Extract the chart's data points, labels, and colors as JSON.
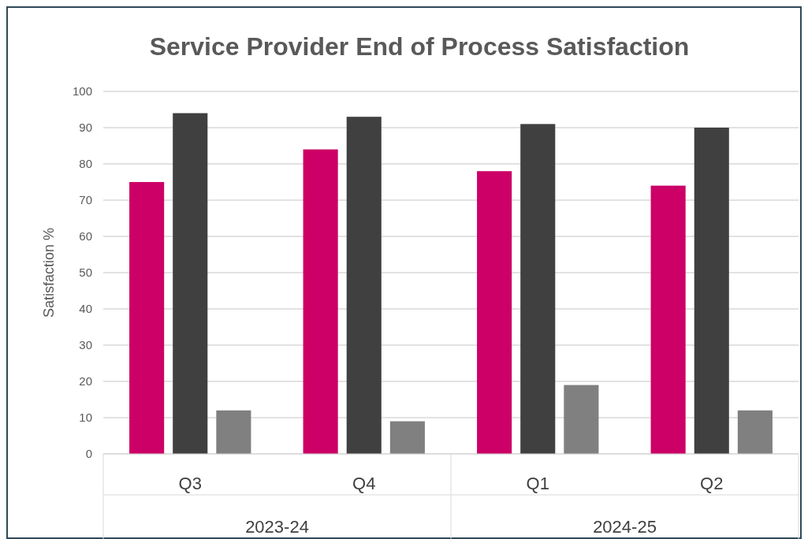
{
  "chart_data": {
    "type": "bar",
    "title": "Service Provider End of Process Satisfaction",
    "ylabel": "Satisfaction %",
    "categories": [
      "Q3",
      "Q4",
      "Q1",
      "Q2"
    ],
    "annotations": [
      "2023-24",
      "2024-25"
    ],
    "series": [
      {
        "color": "#cc0066",
        "values": [
          75,
          84,
          78,
          74
        ]
      },
      {
        "color": "#404040",
        "values": [
          94,
          93,
          91,
          90
        ]
      },
      {
        "color": "#808080",
        "values": [
          12,
          9,
          19,
          12
        ]
      }
    ],
    "ylim": [
      0,
      100
    ],
    "yticks": [
      0,
      10,
      20,
      30,
      40,
      50,
      60,
      70,
      80,
      90,
      100
    ],
    "grid": "y"
  }
}
